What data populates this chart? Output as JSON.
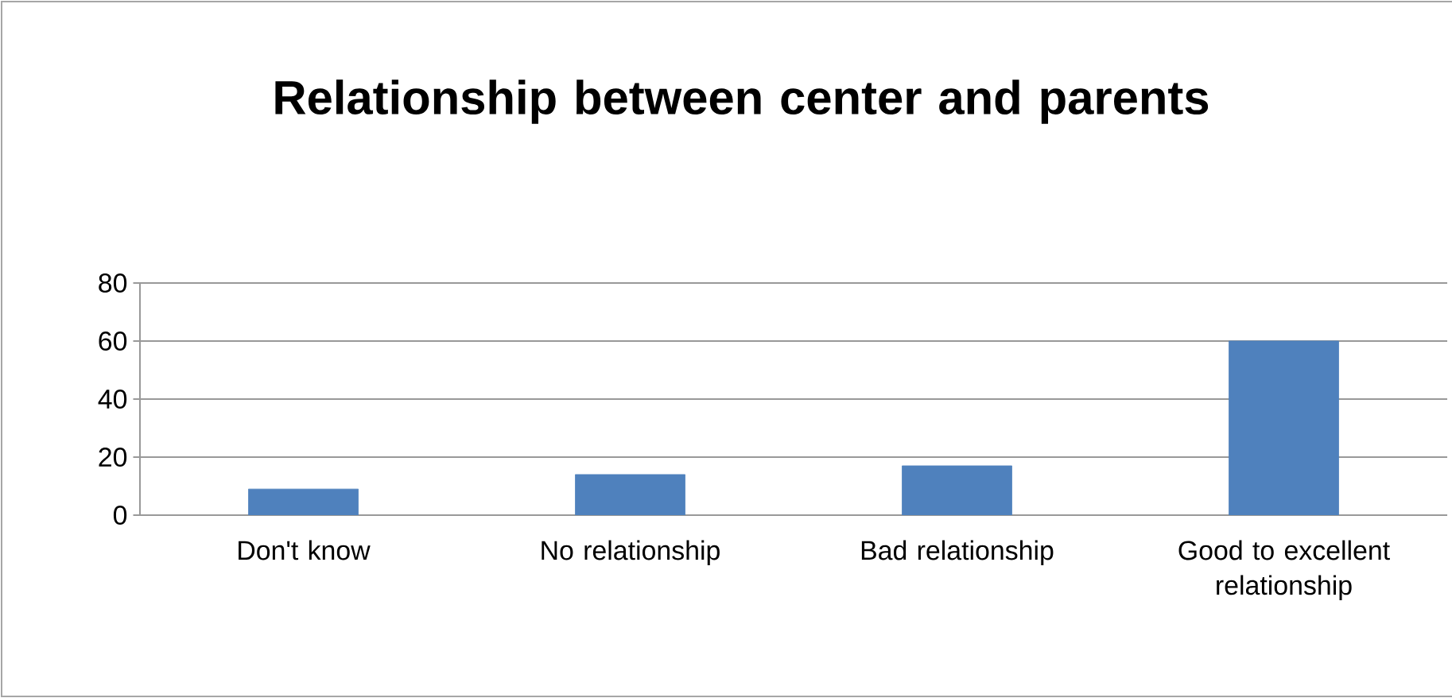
{
  "chart_data": {
    "type": "bar",
    "title": "Relationship between center and parents",
    "categories": [
      "Don't know",
      "No relationship",
      "Bad relationship",
      "Good to excellent relationship"
    ],
    "values": [
      9,
      14,
      17,
      60
    ],
    "color": "#4f81bd",
    "ylim": [
      0,
      80
    ],
    "yticks": [
      0,
      20,
      40,
      60,
      80
    ],
    "grid": "y"
  }
}
